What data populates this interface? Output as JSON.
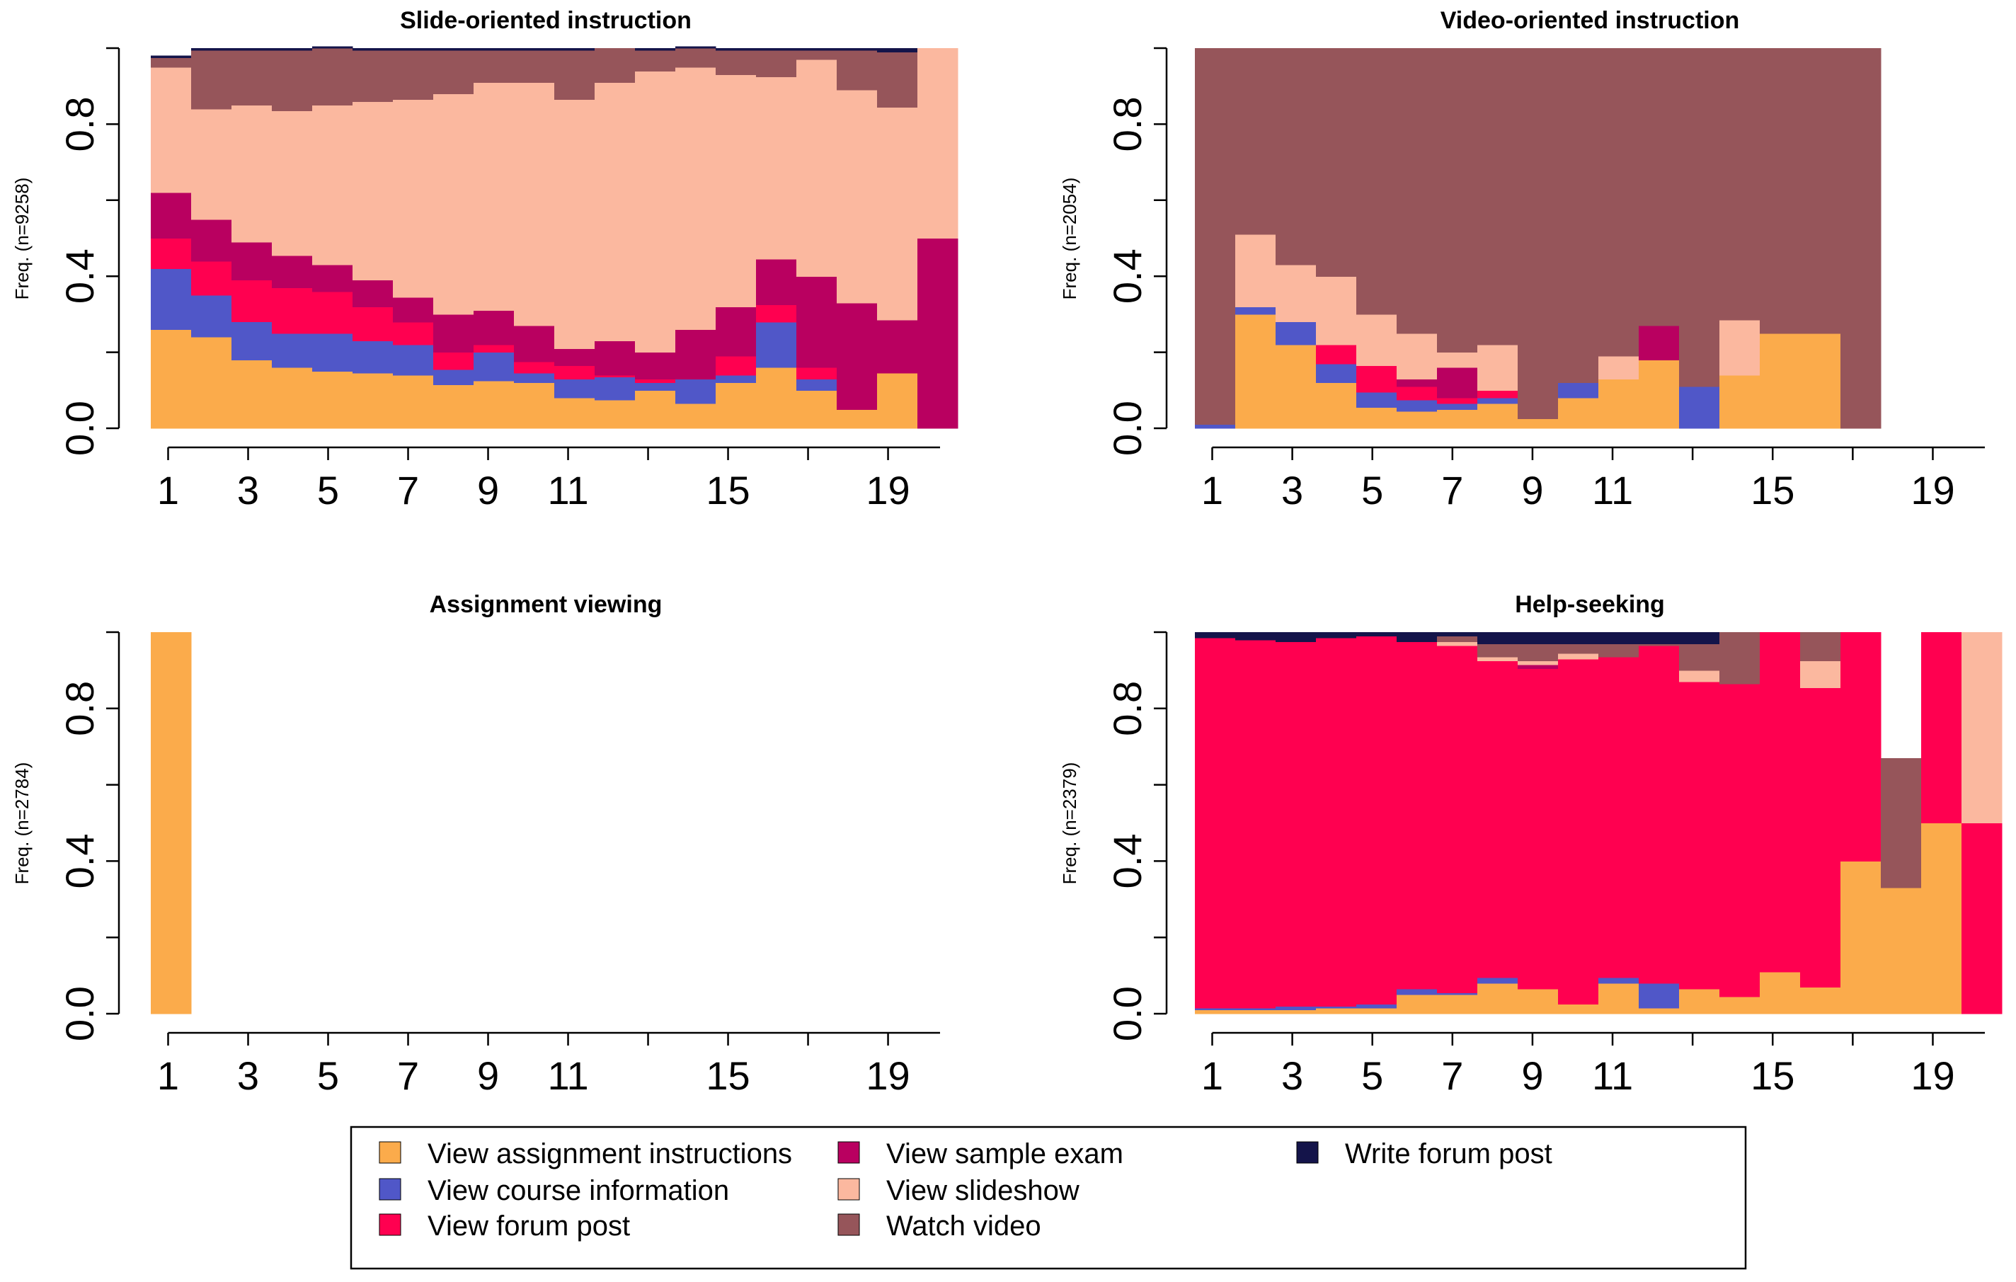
{
  "figure": {
    "legend": {
      "entries": [
        {
          "label": "View assignment instructions",
          "color": "#FBAB4B"
        },
        {
          "label": "View course information",
          "color": "#5057C8"
        },
        {
          "label": "View forum post",
          "color": "#FF0050"
        },
        {
          "label": "View sample exam",
          "color": "#B90060"
        },
        {
          "label": "View slideshow",
          "color": "#FBB89F"
        },
        {
          "label": "Watch video",
          "color": "#96555A"
        },
        {
          "label": "Write forum post",
          "color": "#14144A"
        }
      ]
    }
  },
  "chart_data": [
    {
      "type": "bar",
      "stacked": true,
      "title": "Slide-oriented instruction",
      "ylabel": "Freq. (n=9258)",
      "ylim": [
        0,
        1
      ],
      "yticks": [
        "0.0",
        "0.4",
        "0.8"
      ],
      "x_tick_labels": [
        "1",
        "3",
        "5",
        "7",
        "9",
        "11",
        "15",
        "19"
      ],
      "num_positions": 19,
      "categories": [
        "1",
        "2",
        "3",
        "4",
        "5",
        "6",
        "7",
        "8",
        "9",
        "10",
        "11",
        "12",
        "13",
        "14",
        "15",
        "16",
        "17",
        "18",
        "19",
        "20"
      ],
      "series": [
        {
          "name": "View assignment instructions",
          "values": [
            0.26,
            0.24,
            0.18,
            0.16,
            0.15,
            0.145,
            0.14,
            0.115,
            0.125,
            0.12,
            0.08,
            0.075,
            0.1,
            0.065,
            0.12,
            0.16,
            0.1,
            0.05,
            0.145,
            0
          ]
        },
        {
          "name": "View course information",
          "values": [
            0.16,
            0.11,
            0.1,
            0.09,
            0.1,
            0.085,
            0.08,
            0.04,
            0.075,
            0.025,
            0.05,
            0.06,
            0.02,
            0.065,
            0.02,
            0.12,
            0.03,
            0,
            0,
            0
          ]
        },
        {
          "name": "View forum post",
          "values": [
            0.08,
            0.09,
            0.11,
            0.12,
            0.11,
            0.09,
            0.06,
            0.045,
            0.02,
            0.03,
            0.035,
            0.005,
            0.01,
            0,
            0.05,
            0.045,
            0.03,
            0,
            0,
            0
          ]
        },
        {
          "name": "View sample exam",
          "values": [
            0.12,
            0.11,
            0.1,
            0.085,
            0.07,
            0.07,
            0.065,
            0.1,
            0.09,
            0.095,
            0.045,
            0.09,
            0.07,
            0.13,
            0.13,
            0.12,
            0.24,
            0.28,
            0.14,
            0.5
          ]
        },
        {
          "name": "View slideshow",
          "values": [
            0.33,
            0.29,
            0.36,
            0.38,
            0.42,
            0.47,
            0.52,
            0.58,
            0.6,
            0.64,
            0.655,
            0.68,
            0.74,
            0.69,
            0.61,
            0.48,
            0.57,
            0.56,
            0.56,
            0.5
          ]
        },
        {
          "name": "Watch video",
          "values": [
            0.025,
            0.155,
            0.145,
            0.16,
            0.15,
            0.135,
            0.13,
            0.115,
            0.085,
            0.085,
            0.13,
            0.09,
            0.055,
            0.05,
            0.065,
            0.07,
            0.025,
            0.105,
            0.145,
            0
          ]
        },
        {
          "name": "Write forum post",
          "values": [
            0.005,
            0.005,
            0.005,
            0.005,
            0.005,
            0.005,
            0.005,
            0.005,
            0.005,
            0.005,
            0.005,
            0,
            0.005,
            0.005,
            0.005,
            0.005,
            0.005,
            0.005,
            0.01,
            0
          ]
        }
      ]
    },
    {
      "type": "bar",
      "stacked": true,
      "title": "Video-oriented instruction",
      "ylabel": "Freq. (n=2054)",
      "ylim": [
        0,
        1
      ],
      "yticks": [
        "0.0",
        "0.4",
        "0.8"
      ],
      "x_tick_labels": [
        "1",
        "3",
        "5",
        "7",
        "9",
        "11",
        "15",
        "19"
      ],
      "num_positions": 19,
      "categories": [
        "1",
        "2",
        "3",
        "4",
        "5",
        "6",
        "7",
        "8",
        "9",
        "10",
        "11",
        "12",
        "13",
        "14",
        "15",
        "16",
        "17"
      ],
      "series": [
        {
          "name": "View assignment instructions",
          "values": [
            0,
            0.3,
            0.22,
            0.12,
            0.055,
            0.045,
            0.05,
            0.065,
            0.025,
            0.08,
            0.13,
            0.18,
            0,
            0.14,
            0.25,
            0.25,
            0
          ]
        },
        {
          "name": "View course information",
          "values": [
            0.01,
            0.02,
            0.06,
            0.05,
            0.04,
            0.03,
            0.015,
            0.015,
            0,
            0.04,
            0,
            0,
            0.11,
            0,
            0,
            0,
            0
          ]
        },
        {
          "name": "View forum post",
          "values": [
            0,
            0,
            0,
            0.05,
            0.07,
            0.035,
            0.015,
            0.02,
            0,
            0,
            0,
            0,
            0,
            0,
            0,
            0,
            0
          ]
        },
        {
          "name": "View sample exam",
          "values": [
            0,
            0,
            0,
            0,
            0,
            0.02,
            0.08,
            0,
            0,
            0,
            0,
            0.09,
            0,
            0,
            0,
            0,
            0
          ]
        },
        {
          "name": "View slideshow",
          "values": [
            0,
            0.19,
            0.15,
            0.18,
            0.135,
            0.12,
            0.04,
            0.12,
            0,
            0,
            0.06,
            0,
            0,
            0.145,
            0,
            0,
            0
          ]
        },
        {
          "name": "Watch video",
          "values": [
            0.99,
            0.49,
            0.57,
            0.6,
            0.7,
            0.75,
            0.8,
            0.78,
            0.975,
            0.88,
            0.81,
            0.73,
            0.89,
            0.715,
            0.75,
            0.75,
            1.0
          ]
        },
        {
          "name": "Write forum post",
          "values": [
            0,
            0,
            0,
            0,
            0,
            0,
            0,
            0,
            0,
            0,
            0,
            0,
            0,
            0,
            0,
            0,
            0
          ]
        }
      ]
    },
    {
      "type": "bar",
      "stacked": true,
      "title": "Assignment viewing",
      "ylabel": "Freq. (n=2784)",
      "ylim": [
        0,
        1
      ],
      "yticks": [
        "0.0",
        "0.4",
        "0.8"
      ],
      "x_tick_labels": [
        "1",
        "3",
        "5",
        "7",
        "9",
        "11",
        "15",
        "19"
      ],
      "num_positions": 19,
      "categories": [
        "1"
      ],
      "series": [
        {
          "name": "View assignment instructions",
          "values": [
            1.0
          ]
        },
        {
          "name": "View course information",
          "values": [
            0
          ]
        },
        {
          "name": "View forum post",
          "values": [
            0
          ]
        },
        {
          "name": "View sample exam",
          "values": [
            0
          ]
        },
        {
          "name": "View slideshow",
          "values": [
            0
          ]
        },
        {
          "name": "Watch video",
          "values": [
            0
          ]
        },
        {
          "name": "Write forum post",
          "values": [
            0
          ]
        }
      ]
    },
    {
      "type": "bar",
      "stacked": true,
      "title": "Help-seeking",
      "ylabel": "Freq. (n=2379)",
      "ylim": [
        0,
        1
      ],
      "yticks": [
        "0.0",
        "0.4",
        "0.8"
      ],
      "x_tick_labels": [
        "1",
        "3",
        "5",
        "7",
        "9",
        "11",
        "15",
        "19"
      ],
      "num_positions": 19,
      "categories": [
        "1",
        "2",
        "3",
        "4",
        "5",
        "6",
        "7",
        "8",
        "9",
        "10",
        "11",
        "12",
        "13",
        "14",
        "15",
        "16",
        "17",
        "18",
        "19",
        "20"
      ],
      "series": [
        {
          "name": "View assignment instructions",
          "values": [
            0.01,
            0.01,
            0.01,
            0.015,
            0.015,
            0.05,
            0.05,
            0.08,
            0.065,
            0.025,
            0.08,
            0.015,
            0.065,
            0.045,
            0.11,
            0.07,
            0.4,
            0.33,
            0.5,
            0
          ]
        },
        {
          "name": "View course information",
          "values": [
            0.005,
            0.005,
            0.01,
            0.005,
            0.01,
            0.015,
            0.005,
            0.015,
            0,
            0,
            0.015,
            0.065,
            0,
            0,
            0,
            0,
            0,
            0,
            0,
            0
          ]
        },
        {
          "name": "View forum post",
          "values": [
            0.97,
            0.965,
            0.955,
            0.965,
            0.965,
            0.91,
            0.91,
            0.83,
            0.84,
            0.905,
            0.84,
            0.885,
            0.805,
            0.82,
            0.89,
            0.785,
            0.6,
            0,
            0.5,
            0.5
          ]
        },
        {
          "name": "View sample exam",
          "values": [
            0,
            0,
            0,
            0,
            0,
            0,
            0,
            0,
            0.01,
            0,
            0,
            0,
            0,
            0,
            0,
            0,
            0,
            0,
            0,
            0
          ]
        },
        {
          "name": "View slideshow",
          "values": [
            0,
            0,
            0,
            0,
            0,
            0,
            0.01,
            0.01,
            0.01,
            0.015,
            0,
            0,
            0.03,
            0,
            0,
            0.07,
            0,
            0,
            0,
            0.5
          ]
        },
        {
          "name": "Watch video",
          "values": [
            0,
            0,
            0,
            0,
            0,
            0,
            0.015,
            0.035,
            0.045,
            0.025,
            0.035,
            0.005,
            0.07,
            0.135,
            0,
            0.075,
            0,
            0.34,
            0,
            0
          ]
        },
        {
          "name": "Write forum post",
          "values": [
            0.015,
            0.02,
            0.025,
            0.015,
            0.01,
            0.025,
            0.01,
            0.03,
            0.03,
            0.03,
            0.03,
            0.03,
            0.03,
            0,
            0,
            0,
            0,
            0,
            0,
            0
          ]
        }
      ]
    }
  ]
}
